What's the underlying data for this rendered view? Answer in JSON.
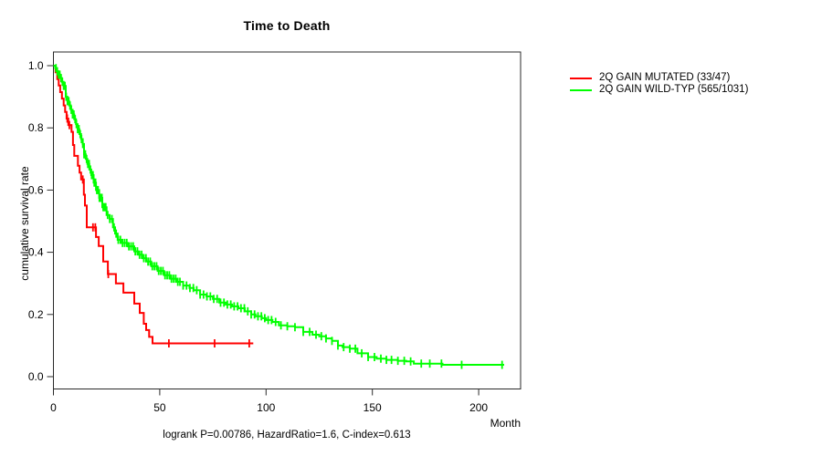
{
  "page": {
    "background": "#ffffff"
  },
  "chart": {
    "title": "Time to Death",
    "x_axis_label": "Month",
    "y_axis_label": "cumulative survival rate",
    "caption": "logrank P=0.00786, HazardRatio=1.6, C-index=0.613"
  },
  "legend": {
    "items": [
      {
        "label": "2Q GAIN MUTATED (33/47)",
        "color": "#ff0000"
      },
      {
        "label": "2Q GAIN WILD-TYP (565/1031)",
        "color": "#00ff00"
      }
    ]
  },
  "chart_data": {
    "type": "line",
    "subtype": "kaplan-meier-step",
    "title": "Time to Death",
    "xlabel": "Month",
    "ylabel": "cumulative survival rate",
    "xlim": [
      0,
      220
    ],
    "ylim": [
      0,
      1
    ],
    "x_ticks": [
      0,
      50,
      100,
      150,
      200
    ],
    "y_ticks": [
      "0.0",
      "0.2",
      "0.4",
      "0.6",
      "0.8",
      "1.0"
    ],
    "grid": false,
    "legend_position": "right",
    "annotation": "logrank P=0.00786, HazardRatio=1.6, C-index=0.613",
    "statistics": {
      "logrank_p": 0.00786,
      "hazard_ratio": 1.6,
      "c_index": 0.613
    },
    "series": [
      {
        "name": "2Q GAIN MUTATED (33/47)",
        "color": "#ff0000",
        "events": 33,
        "total": 47,
        "end_time": 94,
        "steps": [
          [
            0,
            1.0
          ],
          [
            1,
            0.979
          ],
          [
            1.8,
            0.957
          ],
          [
            2.5,
            0.936
          ],
          [
            3.2,
            0.915
          ],
          [
            4,
            0.894
          ],
          [
            4.8,
            0.872
          ],
          [
            5.5,
            0.851
          ],
          [
            6.2,
            0.83
          ],
          [
            7,
            0.809
          ],
          [
            8.5,
            0.787
          ],
          [
            9.2,
            0.745
          ],
          [
            9.8,
            0.71
          ],
          [
            11.5,
            0.678
          ],
          [
            12.3,
            0.656
          ],
          [
            13,
            0.634
          ],
          [
            14.3,
            0.585
          ],
          [
            14.8,
            0.55
          ],
          [
            15.7,
            0.48
          ],
          [
            20,
            0.449
          ],
          [
            21.3,
            0.42
          ],
          [
            23.4,
            0.37
          ],
          [
            25.6,
            0.33
          ],
          [
            29.4,
            0.3
          ],
          [
            32.9,
            0.27
          ],
          [
            38,
            0.235
          ],
          [
            40.6,
            0.205
          ],
          [
            42.5,
            0.17
          ],
          [
            43.6,
            0.15
          ],
          [
            45,
            0.128
          ],
          [
            46.6,
            0.107
          ]
        ],
        "censor_times": [
          6.5,
          7.5,
          13.8,
          18.6,
          19.7,
          25.8,
          54.3,
          75.8,
          92.1
        ]
      },
      {
        "name": "2Q GAIN WILD-TYP (565/1031)",
        "color": "#00ff00",
        "events": 565,
        "total": 1031,
        "end_time": 212,
        "steps": [
          [
            0,
            1.0
          ],
          [
            0.8,
            0.992
          ],
          [
            1.6,
            0.982
          ],
          [
            2.4,
            0.971
          ],
          [
            3.2,
            0.96
          ],
          [
            4,
            0.948
          ],
          [
            4.8,
            0.935
          ],
          [
            5.8,
            0.9
          ],
          [
            6.6,
            0.886
          ],
          [
            7.4,
            0.872
          ],
          [
            8.2,
            0.858
          ],
          [
            9,
            0.843
          ],
          [
            9.8,
            0.828
          ],
          [
            10.6,
            0.812
          ],
          [
            11.4,
            0.796
          ],
          [
            12.2,
            0.78
          ],
          [
            13,
            0.764
          ],
          [
            13.8,
            0.748
          ],
          [
            14.4,
            0.715
          ],
          [
            15.2,
            0.7
          ],
          [
            16,
            0.684
          ],
          [
            16.9,
            0.666
          ],
          [
            17.8,
            0.648
          ],
          [
            18.9,
            0.624
          ],
          [
            20,
            0.6
          ],
          [
            21.5,
            0.575
          ],
          [
            23,
            0.545
          ],
          [
            25,
            0.52
          ],
          [
            26.4,
            0.507
          ],
          [
            28,
            0.48
          ],
          [
            29,
            0.46
          ],
          [
            30.2,
            0.44
          ],
          [
            32,
            0.43
          ],
          [
            35,
            0.419
          ],
          [
            38,
            0.403
          ],
          [
            40,
            0.392
          ],
          [
            41.8,
            0.381
          ],
          [
            43.6,
            0.37
          ],
          [
            46,
            0.355
          ],
          [
            49,
            0.34
          ],
          [
            52,
            0.326
          ],
          [
            55,
            0.315
          ],
          [
            58,
            0.305
          ],
          [
            61,
            0.293
          ],
          [
            64,
            0.285
          ],
          [
            66,
            0.278
          ],
          [
            69,
            0.264
          ],
          [
            72,
            0.258
          ],
          [
            75,
            0.25
          ],
          [
            78,
            0.238
          ],
          [
            81,
            0.232
          ],
          [
            84,
            0.226
          ],
          [
            87,
            0.22
          ],
          [
            90,
            0.21
          ],
          [
            93,
            0.2
          ],
          [
            95,
            0.194
          ],
          [
            98,
            0.188
          ],
          [
            100,
            0.182
          ],
          [
            103,
            0.176
          ],
          [
            106,
            0.165
          ],
          [
            110,
            0.162
          ],
          [
            113.6,
            0.159
          ],
          [
            117.5,
            0.144
          ],
          [
            121.8,
            0.135
          ],
          [
            125,
            0.13
          ],
          [
            128.2,
            0.123
          ],
          [
            131,
            0.115
          ],
          [
            133.8,
            0.1
          ],
          [
            136,
            0.095
          ],
          [
            139.4,
            0.09
          ],
          [
            143,
            0.075
          ],
          [
            148,
            0.063
          ],
          [
            152,
            0.058
          ],
          [
            156.6,
            0.054
          ],
          [
            162,
            0.051
          ],
          [
            166,
            0.049
          ],
          [
            169.5,
            0.042
          ],
          [
            183,
            0.038
          ]
        ],
        "censor_times": [
          1.2,
          1.8,
          2.4,
          3.0,
          3.6,
          4.2,
          4.8,
          5.4,
          6.0,
          6.6,
          7.2,
          7.8,
          8.4,
          9.0,
          9.6,
          10.2,
          10.8,
          11.4,
          12.0,
          12.6,
          13.2,
          13.8,
          14.4,
          15.0,
          15.6,
          16.2,
          16.8,
          17.4,
          18.0,
          18.6,
          19.2,
          19.8,
          20.4,
          21.0,
          21.6,
          22.2,
          22.8,
          23.4,
          24.0,
          24.6,
          25.5,
          26.5,
          27.5,
          28.5,
          29.5,
          30.5,
          31.5,
          32.5,
          33.5,
          34.5,
          35.5,
          36.5,
          37.5,
          38.5,
          39.5,
          40.5,
          41.5,
          42.5,
          43.5,
          44.5,
          45.5,
          46.5,
          47.5,
          48.5,
          49.5,
          50.5,
          51.5,
          52.5,
          53.5,
          54.5,
          55.5,
          56.5,
          57.5,
          58.5,
          59.5,
          61,
          62.6,
          64.2,
          65.8,
          67.4,
          69,
          70.6,
          72.2,
          73.8,
          75.4,
          77,
          78.6,
          80.2,
          81.8,
          83.4,
          85,
          86.6,
          88.2,
          89.8,
          91.4,
          93,
          94.6,
          96.2,
          97.8,
          99.4,
          101,
          102.6,
          104.5,
          107,
          110,
          113.6,
          117.5,
          120.5,
          123.5,
          126,
          128.2,
          131,
          133.8,
          136.5,
          139.4,
          142,
          145,
          148,
          151,
          154,
          156.6,
          159,
          162,
          165,
          168,
          173,
          177,
          182.5,
          192,
          211
        ]
      }
    ]
  }
}
